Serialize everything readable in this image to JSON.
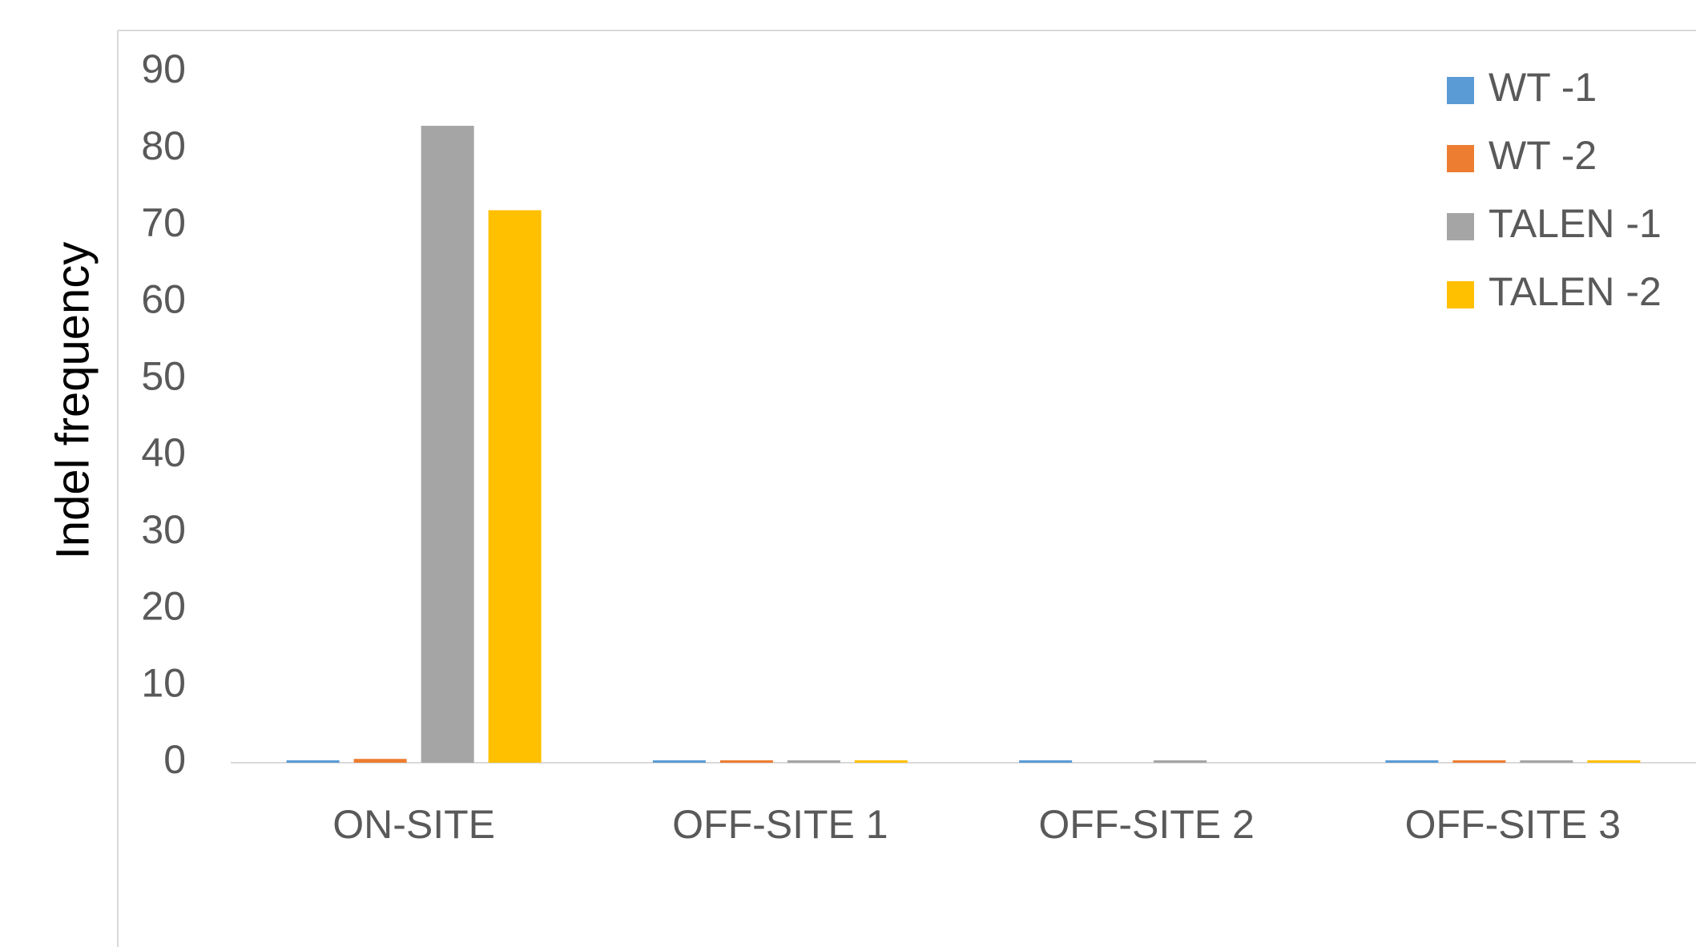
{
  "chart_data": {
    "type": "bar",
    "y_label": "Indel frequency",
    "categories": [
      "ON-SITE",
      "OFF-SITE 1",
      "OFF-SITE 2",
      "OFF-SITE 3"
    ],
    "series": [
      {
        "name": "WT -1",
        "color": "#5b9bd5",
        "values": [
          0.2,
          0.2,
          0.2,
          0.2
        ]
      },
      {
        "name": "WT -2",
        "color": "#ed7d31",
        "values": [
          0.5,
          0.2,
          0,
          0.2
        ]
      },
      {
        "name": "TALEN -1",
        "color": "#a5a5a5",
        "values": [
          83,
          0.1,
          0.1,
          0.1
        ]
      },
      {
        "name": "TALEN -2",
        "color": "#ffc000",
        "values": [
          72,
          0.2,
          0,
          0.2
        ]
      }
    ],
    "ylim": [
      0,
      90
    ],
    "yticks": [
      0,
      10,
      20,
      30,
      40,
      50,
      60,
      70,
      80,
      90
    ],
    "grid": false,
    "legend": "top-right"
  }
}
